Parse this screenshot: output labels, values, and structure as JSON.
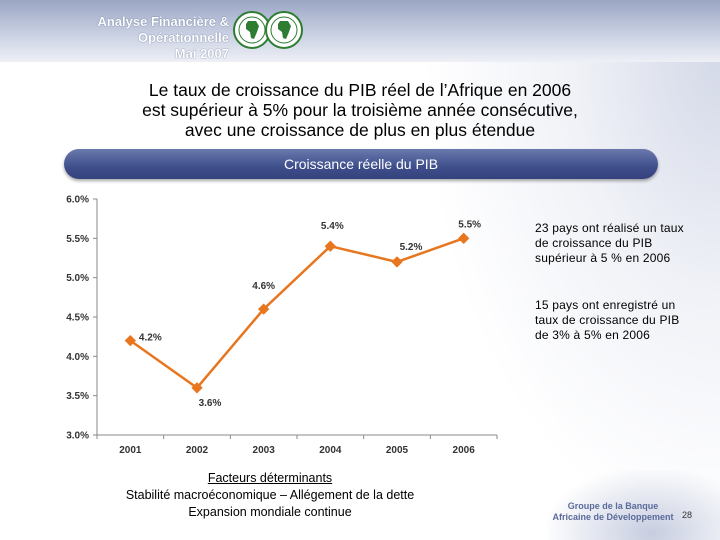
{
  "header": {
    "line1": "Analyse Financière & Opérationnelle",
    "line2": "Mai 2007"
  },
  "title": {
    "line1": "Le taux de croissance du PIB réel de l’Afrique en 2006",
    "line2": "est supérieur à 5% pour la troisième année consécutive,",
    "line3": "avec une croissance de plus en plus étendue"
  },
  "banner": {
    "label": "Croissance réelle du PIB"
  },
  "chart_data": {
    "type": "line",
    "title": "Croissance réelle du PIB",
    "categories": [
      "2001",
      "2002",
      "2003",
      "2004",
      "2005",
      "2006"
    ],
    "series": [
      {
        "name": "Croissance réelle du PIB",
        "values": [
          4.2,
          3.6,
          4.6,
          5.4,
          5.2,
          5.5
        ]
      }
    ],
    "data_labels": [
      "4.2%",
      "3.6%",
      "4.6%",
      "5.4%",
      "5.2%",
      "5.5%"
    ],
    "ylim": [
      3.0,
      6.0
    ],
    "yticks": [
      3.0,
      3.5,
      4.0,
      4.5,
      5.0,
      5.5,
      6.0
    ],
    "ytick_labels": [
      "3.0%",
      "3.5%",
      "4.0%",
      "4.5%",
      "5.0%",
      "5.5%",
      "6.0%"
    ],
    "xlabel": "",
    "ylabel": "",
    "grid": false,
    "line_color": "#e8761e"
  },
  "notes": [
    "23 pays ont réalisé un taux de croissance du PIB supérieur à 5 % en 2006",
    "15 pays ont enregistré un taux de croissance du PIB de 3% à 5% en 2006"
  ],
  "factors": {
    "heading": "Facteurs déterminants",
    "line1": "Stabilité macroéconomique – Allégement de la dette",
    "line2": "Expansion mondiale continue"
  },
  "footer": {
    "org_line1": "Groupe de la Banque",
    "org_line2": "Africaine de Développement",
    "page": "28"
  },
  "colors": {
    "banner": "#3f4f8c",
    "accent": "#e8761e",
    "logo_green": "#2e7d32"
  }
}
